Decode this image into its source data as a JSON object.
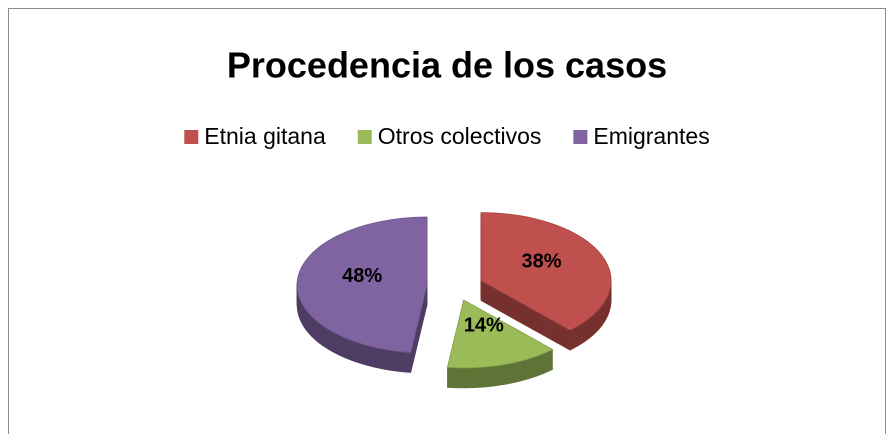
{
  "chart_data": {
    "type": "pie3d",
    "title": "Procedencia de los casos",
    "categories": [
      "Etnia gitana",
      "Otros colectivos",
      "Emigrantes"
    ],
    "values": [
      38,
      14,
      48
    ],
    "value_labels": [
      "38%",
      "14%",
      "48%"
    ],
    "colors": [
      "#c0504d",
      "#9bbb59",
      "#8064a2"
    ],
    "legend": "top"
  }
}
